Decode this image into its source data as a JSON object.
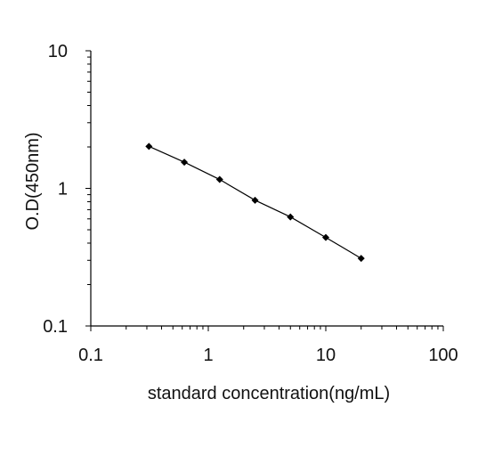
{
  "chart_data": {
    "type": "scatter",
    "title": "",
    "xlabel": "standard concentration(ng/mL)",
    "ylabel": "O.D(450nm)",
    "x_scale": "log",
    "y_scale": "log",
    "xlim": [
      0.1,
      100
    ],
    "ylim": [
      0.1,
      10
    ],
    "x_ticks": [
      "0.1",
      "1",
      "10",
      "100"
    ],
    "y_ticks": [
      "0.1",
      "1",
      "10"
    ],
    "grid": false,
    "legend": "none",
    "series": [
      {
        "x": [
          0.3125,
          0.625,
          1.25,
          2.5,
          5,
          10,
          20
        ],
        "y": [
          2.02,
          1.55,
          1.16,
          0.82,
          0.62,
          0.44,
          0.31
        ],
        "marker": "diamond",
        "line": true
      }
    ],
    "colors": {
      "line": "#000000",
      "marker": "#000000",
      "axis": "#000000"
    }
  }
}
